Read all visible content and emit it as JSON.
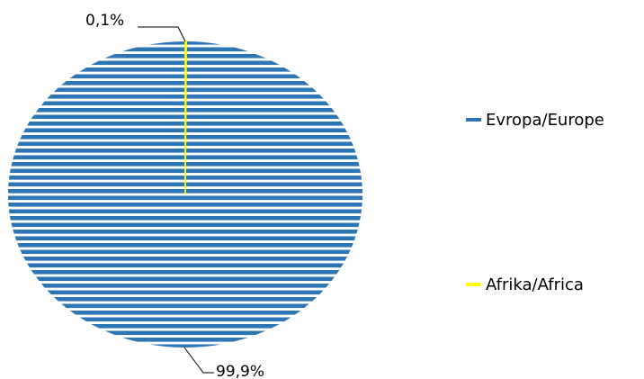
{
  "chart_data": {
    "type": "pie",
    "title": "",
    "categories": [
      "Evropa/Europe",
      "Afrika/Africa"
    ],
    "values": [
      99.9,
      0.1
    ],
    "data_labels": [
      "99,9%",
      "0,1%"
    ],
    "colors": [
      "#2E75B6",
      "#FFFF00"
    ],
    "fill_pattern": "horizontal-stripes",
    "legend_position": "right"
  },
  "legend": {
    "items": [
      {
        "label": "Evropa/Europe",
        "color": "#2E75B6"
      },
      {
        "label": "Afrika/Africa",
        "color": "#FFFF00"
      }
    ]
  },
  "labels": {
    "europe_percent": "99,9%",
    "africa_percent": "0,1%"
  }
}
